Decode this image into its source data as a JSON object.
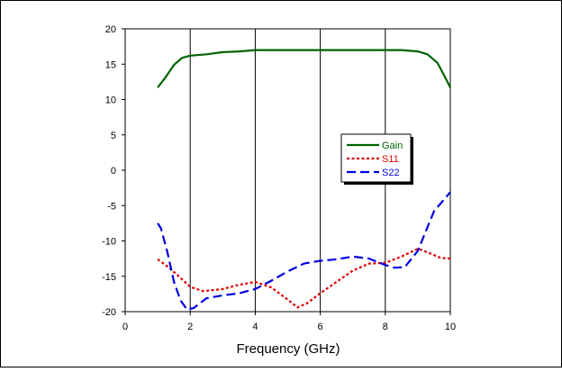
{
  "chart_data": {
    "type": "line",
    "title": "",
    "xlabel": "Frequency (GHz)",
    "ylabel": "",
    "xlim": [
      0,
      10
    ],
    "ylim": [
      -20,
      20
    ],
    "xticks": [
      0,
      2,
      4,
      6,
      8,
      10
    ],
    "yticks": [
      20,
      15,
      10,
      5,
      0,
      -5,
      -10,
      -15,
      -20
    ],
    "grid": "vertical",
    "legend_position": "right-middle",
    "series": [
      {
        "name": "Gain",
        "color": "#006400",
        "style": "solid",
        "x": [
          1.0,
          1.25,
          1.5,
          1.75,
          2.0,
          2.5,
          3.0,
          3.5,
          4.0,
          4.5,
          5.0,
          5.5,
          6.0,
          6.5,
          7.0,
          7.5,
          8.0,
          8.5,
          9.0,
          9.3,
          9.6,
          9.8,
          10.0
        ],
        "y": [
          11.7,
          13.2,
          14.9,
          15.9,
          16.2,
          16.4,
          16.7,
          16.8,
          17.0,
          17.0,
          17.0,
          17.0,
          17.0,
          17.0,
          17.0,
          17.0,
          17.0,
          17.0,
          16.8,
          16.4,
          15.2,
          13.5,
          11.7
        ]
      },
      {
        "name": "S11",
        "color": "#e00000",
        "style": "dotted",
        "x": [
          1.0,
          1.3,
          1.6,
          2.0,
          2.4,
          3.0,
          3.5,
          4.0,
          4.5,
          5.0,
          5.3,
          5.6,
          6.0,
          6.5,
          7.0,
          7.5,
          8.0,
          8.5,
          9.0,
          9.3,
          9.7,
          10.0
        ],
        "y": [
          -12.6,
          -13.6,
          -14.8,
          -16.5,
          -17.1,
          -16.8,
          -16.2,
          -15.8,
          -16.6,
          -18.3,
          -19.4,
          -18.8,
          -17.4,
          -15.8,
          -14.2,
          -13.2,
          -13.1,
          -12.2,
          -11.1,
          -11.6,
          -12.4,
          -12.5
        ]
      },
      {
        "name": "S22",
        "color": "#0000e0",
        "style": "dashed",
        "x": [
          1.0,
          1.1,
          1.3,
          1.5,
          1.7,
          1.9,
          2.1,
          2.5,
          3.0,
          3.5,
          4.0,
          4.5,
          5.0,
          5.5,
          6.0,
          6.5,
          7.0,
          7.5,
          8.0,
          8.3,
          8.6,
          9.0,
          9.5,
          10.0
        ],
        "y": [
          -7.5,
          -8.2,
          -11.6,
          -15.8,
          -18.4,
          -19.7,
          -19.5,
          -18.1,
          -17.7,
          -17.4,
          -16.8,
          -15.6,
          -14.3,
          -13.2,
          -12.8,
          -12.6,
          -12.2,
          -12.5,
          -13.4,
          -13.8,
          -13.7,
          -11.4,
          -5.8,
          -3.1
        ]
      }
    ]
  }
}
